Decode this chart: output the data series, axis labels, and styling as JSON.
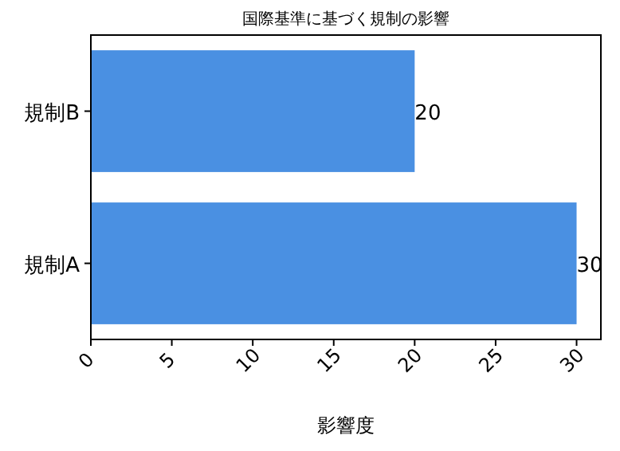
{
  "chart_data": {
    "type": "bar",
    "orientation": "horizontal",
    "title": "国際基準に基づく規制の影響",
    "xlabel": "影響度",
    "categories": [
      "規制B",
      "規制A"
    ],
    "series": [
      {
        "color": "#4a90e2",
        "values": [
          20,
          30
        ]
      }
    ],
    "xlim": [
      0,
      31.5
    ],
    "xticks": [
      0,
      5,
      10,
      15,
      20,
      25,
      30
    ],
    "data_labels": true,
    "grid": false
  }
}
